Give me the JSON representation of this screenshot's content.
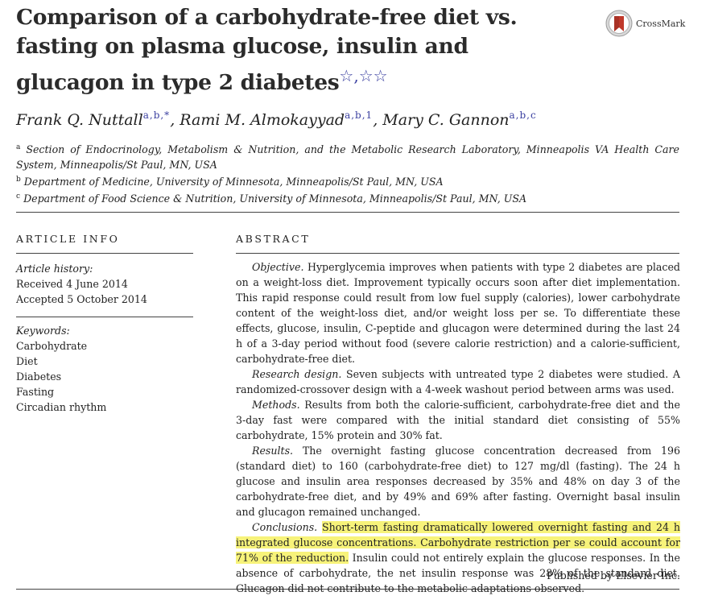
{
  "title": {
    "text": "Comparison of a carbohydrate-free diet vs. fasting on plasma glucose, insulin and glucagon in type 2 diabetes",
    "marks": "☆,☆☆"
  },
  "crossmark": {
    "label": "CrossMark"
  },
  "authors": [
    {
      "name": "Frank Q. Nuttall",
      "sup": "a,b,*"
    },
    {
      "name": "Rami M. Almokayyad",
      "sup": "a,b,1"
    },
    {
      "name": "Mary C. Gannon",
      "sup": "a,b,c"
    }
  ],
  "affiliations": [
    {
      "sup": "a",
      "text": "Section of Endocrinology, Metabolism & Nutrition, and the Metabolic Research Laboratory, Minneapolis VA Health Care System, Minneapolis/St Paul, MN, USA"
    },
    {
      "sup": "b",
      "text": "Department of Medicine, University of Minnesota, Minneapolis/St Paul, MN, USA"
    },
    {
      "sup": "c",
      "text": "Department of Food Science & Nutrition, University of Minnesota, Minneapolis/St Paul, MN, USA"
    }
  ],
  "article_info": {
    "heading": "ARTICLE INFO",
    "history_label": "Article history:",
    "received": "Received 4 June 2014",
    "accepted": "Accepted 5 October 2014",
    "keywords_label": "Keywords:",
    "keywords": [
      "Carbohydrate",
      "Diet",
      "Diabetes",
      "Fasting",
      "Circadian rhythm"
    ]
  },
  "abstract": {
    "heading": "ABSTRACT",
    "objective_label": "Objective.",
    "objective": " Hyperglycemia improves when patients with type 2 diabetes are placed on a weight-loss diet. Improvement typically occurs soon after diet implementation. This rapid response could result from low fuel supply (calories), lower carbohydrate content of the weight-loss diet, and/or weight loss per se. To differentiate these effects, glucose, insulin, C-peptide and glucagon were determined during the last 24 h of a 3-day period without food (severe calorie restriction) and a calorie-sufficient, carbohydrate-free diet.",
    "design_label": "Research design.",
    "design": " Seven subjects with untreated type 2 diabetes were studied. A randomized-crossover design with a 4-week washout period between arms was used.",
    "methods_label": "Methods.",
    "methods": " Results from both the calorie-sufficient, carbohydrate-free diet and the 3-day fast were compared with the initial standard diet consisting of 55% carbohydrate, 15% protein and 30% fat.",
    "results_label": "Results.",
    "results": " The overnight fasting glucose concentration decreased from 196 (standard diet) to 160 (carbohydrate-free diet) to 127 mg/dl (fasting). The 24 h glucose and insulin area responses decreased by 35% and 48% on day 3 of the carbohydrate-free diet, and by 49% and 69% after fasting. Overnight basal insulin and glucagon remained unchanged.",
    "conclusions_label": "Conclusions.",
    "conclusions_highlight": "Short-term fasting dramatically lowered overnight fasting and 24 h integrated glucose concentrations. Carbohydrate restriction per se could account for 71% of the reduction.",
    "conclusions_rest": " Insulin could not entirely explain the glucose responses. In the absence of carbohydrate, the net insulin response was 28% of the standard diet. Glucagon did not contribute to the metabolic adaptations observed.",
    "publisher": "Published by Elsevier Inc."
  },
  "colors": {
    "link_blue": "#3a3fa0",
    "highlight": "#f7f37a",
    "crossmark_red": "#c0392b"
  },
  "icons": [
    "crossmark-logo"
  ]
}
